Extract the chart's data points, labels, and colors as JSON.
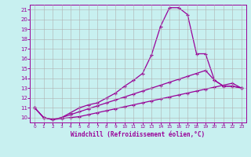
{
  "xlabel": "Windchill (Refroidissement éolien,°C)",
  "bg_color": "#c8f0f0",
  "line_color": "#990099",
  "grid_color": "#b0b0b0",
  "xlim": [
    -0.5,
    23.5
  ],
  "ylim": [
    9.5,
    21.5
  ],
  "xticks": [
    0,
    1,
    2,
    3,
    4,
    5,
    6,
    7,
    8,
    9,
    10,
    11,
    12,
    13,
    14,
    15,
    16,
    17,
    18,
    19,
    20,
    21,
    22,
    23
  ],
  "yticks": [
    10,
    11,
    12,
    13,
    14,
    15,
    16,
    17,
    18,
    19,
    20,
    21
  ],
  "line1_x": [
    0,
    1,
    2,
    3,
    4,
    5,
    6,
    7,
    8,
    9,
    10,
    11,
    12,
    13,
    14,
    15,
    16,
    17,
    18,
    19,
    20,
    21,
    22,
    23
  ],
  "line1_y": [
    11.0,
    10.0,
    9.8,
    9.9,
    10.0,
    10.1,
    10.3,
    10.5,
    10.7,
    10.9,
    11.1,
    11.3,
    11.5,
    11.7,
    11.9,
    12.1,
    12.3,
    12.5,
    12.7,
    12.9,
    13.1,
    13.3,
    13.5,
    13.0
  ],
  "line2_x": [
    0,
    1,
    2,
    3,
    4,
    5,
    6,
    7,
    8,
    9,
    10,
    11,
    12,
    13,
    14,
    15,
    16,
    17,
    18,
    19,
    20,
    21,
    22,
    23
  ],
  "line2_y": [
    11.0,
    10.0,
    9.8,
    10.0,
    10.3,
    10.6,
    10.9,
    11.2,
    11.5,
    11.8,
    12.1,
    12.4,
    12.7,
    13.0,
    13.3,
    13.6,
    13.9,
    14.2,
    14.5,
    14.8,
    13.8,
    13.2,
    13.2,
    13.0
  ],
  "line3_x": [
    0,
    1,
    2,
    3,
    4,
    5,
    6,
    7,
    8,
    9,
    10,
    11,
    12,
    13,
    14,
    15,
    16,
    17,
    18,
    19,
    20,
    21,
    22,
    23
  ],
  "line3_y": [
    11.0,
    10.0,
    9.8,
    10.0,
    10.5,
    11.0,
    11.3,
    11.5,
    12.0,
    12.5,
    13.2,
    13.8,
    14.5,
    16.4,
    19.3,
    21.2,
    21.2,
    20.5,
    16.5,
    16.5,
    13.8,
    13.2,
    13.2,
    13.0
  ]
}
